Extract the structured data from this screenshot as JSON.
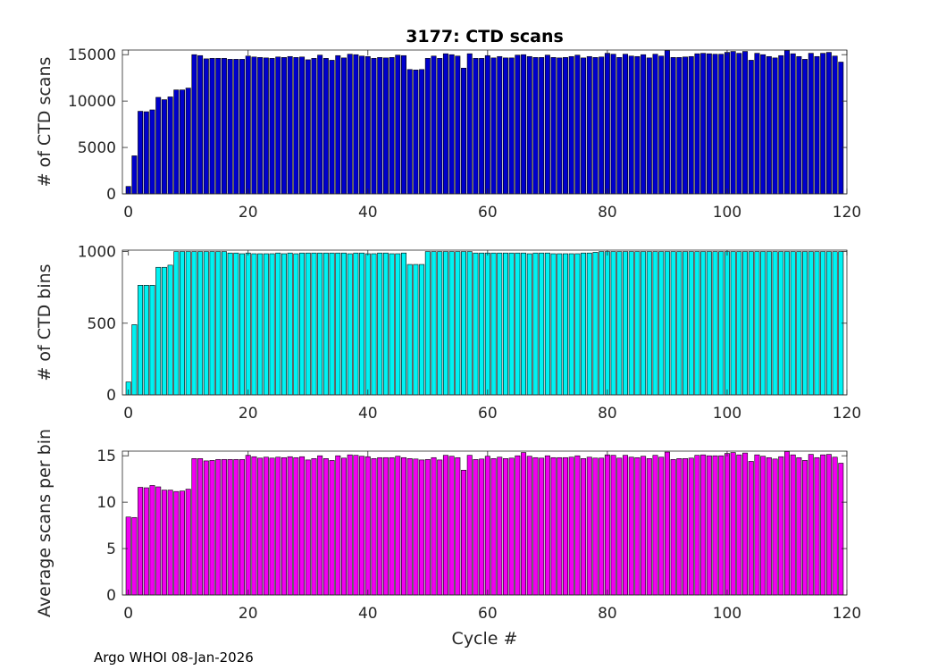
{
  "footer": "Argo WHOI 08-Jan-2026",
  "chart_data": [
    {
      "type": "bar",
      "title": "3177: CTD scans",
      "xlabel": "",
      "ylabel": "# of CTD scans",
      "xlim": [
        -1,
        120
      ],
      "ylim": [
        0,
        15500
      ],
      "xticks": [
        0,
        20,
        40,
        60,
        80,
        100,
        120
      ],
      "yticks": [
        0,
        5000,
        10000,
        15000
      ],
      "color": "#0000cc",
      "x_start": 0,
      "values": [
        800,
        4100,
        8900,
        8850,
        9050,
        10400,
        10150,
        10450,
        11200,
        11200,
        11400,
        15000,
        14900,
        14550,
        14600,
        14600,
        14600,
        14500,
        14500,
        14500,
        14850,
        14750,
        14700,
        14650,
        14600,
        14750,
        14700,
        14800,
        14700,
        14750,
        14450,
        14600,
        14950,
        14600,
        14400,
        14900,
        14650,
        15050,
        15000,
        14850,
        14800,
        14600,
        14700,
        14650,
        14700,
        14950,
        14900,
        13400,
        13350,
        13400,
        14600,
        14850,
        14600,
        15100,
        15000,
        14850,
        13550,
        15100,
        14600,
        14600,
        14900,
        14650,
        14800,
        14650,
        14650,
        14950,
        15000,
        14800,
        14700,
        14700,
        14950,
        14700,
        14650,
        14700,
        14800,
        14950,
        14650,
        14800,
        14700,
        14750,
        15150,
        15050,
        14700,
        15050,
        14850,
        14800,
        15000,
        14650,
        15050,
        14850,
        15450,
        14700,
        14700,
        14750,
        14800,
        15100,
        15150,
        15100,
        15050,
        15050,
        15250,
        15350,
        15150,
        15350,
        14400,
        15150,
        15000,
        14800,
        14650,
        14900,
        15450,
        15100,
        14800,
        14500,
        15150,
        14800,
        15150,
        15250,
        14850,
        14200
      ]
    },
    {
      "type": "bar",
      "title": "",
      "xlabel": "",
      "ylabel": "# of CTD bins",
      "xlim": [
        -1,
        120
      ],
      "ylim": [
        0,
        1010
      ],
      "xticks": [
        0,
        20,
        40,
        60,
        80,
        100,
        120
      ],
      "yticks": [
        0,
        500,
        1000
      ],
      "color": "#00f2f2",
      "x_start": 0,
      "values": [
        90,
        490,
        765,
        765,
        765,
        890,
        890,
        905,
        1000,
        1000,
        1000,
        1000,
        1000,
        1000,
        1000,
        1000,
        1000,
        990,
        990,
        985,
        990,
        985,
        985,
        985,
        985,
        990,
        985,
        990,
        985,
        990,
        990,
        990,
        990,
        990,
        990,
        990,
        990,
        985,
        990,
        990,
        985,
        985,
        990,
        990,
        985,
        985,
        990,
        910,
        910,
        910,
        1000,
        1000,
        1000,
        1000,
        1000,
        1000,
        1000,
        1000,
        990,
        990,
        990,
        990,
        990,
        990,
        990,
        990,
        990,
        985,
        990,
        990,
        990,
        985,
        985,
        985,
        985,
        985,
        990,
        990,
        995,
        1000,
        1000,
        1000,
        1000,
        1000,
        1000,
        1000,
        1000,
        1000,
        1000,
        1000,
        1000,
        1000,
        1000,
        1000,
        1000,
        1000,
        1000,
        1000,
        1000,
        1000,
        1000,
        1000,
        1000,
        1000,
        1000,
        1000,
        1000,
        1000,
        1000,
        1000,
        1000,
        1000,
        1000,
        1000,
        1000,
        1000,
        1000,
        1000,
        1000,
        1000
      ]
    },
    {
      "type": "bar",
      "title": "",
      "xlabel": "Cycle #",
      "ylabel": "Average scans per bin",
      "xlim": [
        -1,
        120
      ],
      "ylim": [
        0,
        15.5
      ],
      "xticks": [
        0,
        20,
        40,
        60,
        80,
        100,
        120
      ],
      "yticks": [
        0,
        5,
        10,
        15
      ],
      "color": "#f000f0",
      "x_start": 0,
      "values": [
        8.4,
        8.35,
        11.6,
        11.55,
        11.8,
        11.65,
        11.3,
        11.3,
        11.15,
        11.2,
        11.4,
        14.7,
        14.7,
        14.45,
        14.5,
        14.6,
        14.6,
        14.6,
        14.6,
        14.6,
        15.05,
        14.9,
        14.75,
        14.85,
        14.75,
        14.85,
        14.8,
        14.9,
        14.8,
        14.9,
        14.55,
        14.7,
        15.0,
        14.7,
        14.5,
        15.0,
        14.75,
        15.1,
        15.05,
        14.95,
        14.9,
        14.7,
        14.8,
        14.8,
        14.8,
        14.95,
        14.8,
        14.7,
        14.65,
        14.55,
        14.6,
        14.8,
        14.55,
        15.05,
        14.95,
        14.8,
        13.45,
        15.05,
        14.6,
        14.65,
        14.95,
        14.7,
        14.85,
        14.7,
        14.75,
        15.0,
        15.35,
        14.95,
        14.8,
        14.75,
        15.0,
        14.8,
        14.8,
        14.8,
        14.85,
        15.0,
        14.7,
        14.85,
        14.75,
        14.75,
        15.1,
        15.05,
        14.75,
        15.05,
        14.85,
        14.8,
        14.95,
        14.7,
        15.05,
        14.85,
        15.4,
        14.6,
        14.7,
        14.7,
        14.75,
        15.05,
        15.1,
        15.0,
        15.0,
        15.0,
        15.25,
        15.35,
        15.1,
        15.3,
        14.4,
        15.1,
        14.95,
        14.8,
        14.65,
        14.9,
        15.45,
        15.1,
        14.8,
        14.5,
        15.15,
        14.8,
        15.1,
        15.15,
        14.85,
        14.2
      ]
    }
  ]
}
